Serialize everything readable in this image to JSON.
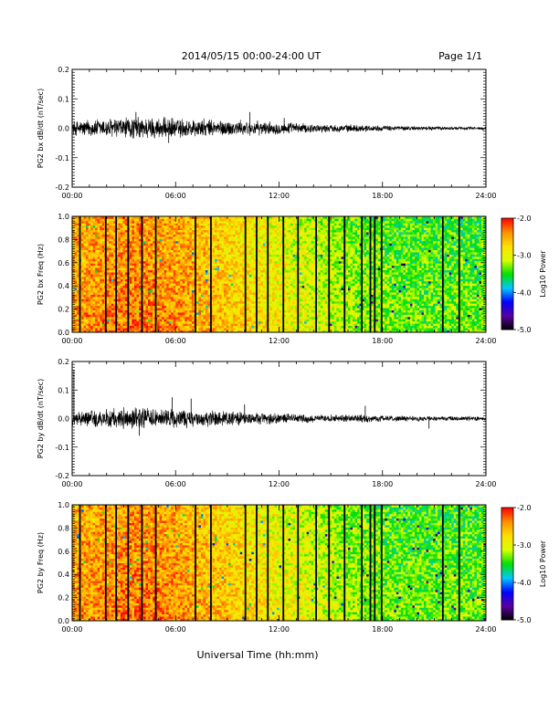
{
  "header": {
    "title": "2014/05/15  00:00-24:00 UT",
    "page": "Page 1/1"
  },
  "footer": {
    "xlabel": "Universal Time (hh:mm)"
  },
  "colorbar": {
    "label": "Log10 Power",
    "ticks": [
      "-2.0",
      "-3.0",
      "-4.0",
      "-5.0"
    ],
    "range": [
      -5.0,
      -2.0
    ],
    "colors": [
      "#000000",
      "#5a00a0",
      "#0000ff",
      "#00c8ff",
      "#00e000",
      "#d8ff00",
      "#ffe000",
      "#ff9000",
      "#ff0000"
    ]
  },
  "chart_data": [
    {
      "type": "line",
      "ylabel": "PG2 bx dB/dt (nT/sec)",
      "xlim": [
        0,
        24
      ],
      "ylim": [
        -0.2,
        0.2
      ],
      "x_tick_labels": [
        "00:00",
        "06:00",
        "12:00",
        "18:00",
        "24:00"
      ],
      "y_tick_labels": [
        "-0.2",
        "-0.1",
        "0.0",
        "0.1",
        "0.2"
      ],
      "amplitude_envelope": {
        "hours": [
          0,
          1,
          2,
          3,
          4,
          5,
          6,
          7,
          8,
          9,
          10,
          11,
          12,
          13,
          14,
          15,
          16,
          17,
          18,
          19,
          20,
          21,
          22,
          23,
          24
        ],
        "amplitude": [
          0.022,
          0.026,
          0.03,
          0.032,
          0.034,
          0.032,
          0.03,
          0.028,
          0.026,
          0.024,
          0.022,
          0.02,
          0.018,
          0.016,
          0.013,
          0.011,
          0.011,
          0.01,
          0.008,
          0.007,
          0.006,
          0.006,
          0.005,
          0.005,
          0.005
        ]
      },
      "spikes": [
        {
          "hour": 3.7,
          "value": 0.055
        },
        {
          "hour": 5.6,
          "value": -0.05
        },
        {
          "hour": 10.3,
          "value": 0.055
        },
        {
          "hour": 12.3,
          "value": 0.035
        }
      ]
    },
    {
      "type": "heatmap",
      "ylabel": "PG2 bx Freq (Hz)",
      "xlim": [
        0,
        24
      ],
      "ylim": [
        0.0,
        1.0
      ],
      "x_tick_labels": [
        "00:00",
        "06:00",
        "12:00",
        "18:00",
        "24:00"
      ],
      "y_tick_labels": [
        "0.0",
        "0.2",
        "0.4",
        "0.6",
        "0.8",
        "1.0"
      ],
      "zlim": [
        -5.0,
        -2.0
      ],
      "mean_log_power": {
        "hours": [
          0,
          2,
          4,
          6,
          8,
          10,
          12,
          14,
          16,
          18,
          20,
          22,
          24
        ],
        "value": [
          -2.45,
          -2.35,
          -2.3,
          -2.4,
          -2.55,
          -2.7,
          -2.85,
          -3.0,
          -3.15,
          -3.25,
          -3.3,
          -3.3,
          -3.3
        ]
      },
      "gap_hours": [
        0.45,
        1.95,
        2.55,
        3.25,
        4.05,
        4.85,
        7.15,
        8.05,
        10.05,
        10.7,
        11.35,
        12.25,
        13.1,
        14.15,
        14.9,
        15.8,
        16.8,
        17.3,
        17.55,
        17.95,
        21.5,
        22.45
      ]
    },
    {
      "type": "line",
      "ylabel": "PG2 by dB/dt (nT/sec)",
      "xlim": [
        0,
        24
      ],
      "ylim": [
        -0.2,
        0.2
      ],
      "x_tick_labels": [
        "00:00",
        "06:00",
        "12:00",
        "18:00",
        "24:00"
      ],
      "y_tick_labels": [
        "-0.2",
        "-0.1",
        "0.0",
        "0.1",
        "0.2"
      ],
      "amplitude_envelope": {
        "hours": [
          0,
          1,
          2,
          3,
          4,
          5,
          6,
          7,
          8,
          9,
          10,
          11,
          12,
          13,
          14,
          15,
          16,
          17,
          18,
          19,
          20,
          21,
          22,
          23,
          24
        ],
        "amplitude": [
          0.02,
          0.024,
          0.028,
          0.032,
          0.035,
          0.033,
          0.03,
          0.027,
          0.024,
          0.022,
          0.02,
          0.018,
          0.016,
          0.014,
          0.012,
          0.011,
          0.012,
          0.012,
          0.009,
          0.008,
          0.008,
          0.007,
          0.007,
          0.007,
          0.007
        ]
      },
      "spikes": [
        {
          "hour": 0.1,
          "value": 0.17
        },
        {
          "hour": 3.9,
          "value": -0.06
        },
        {
          "hour": 5.8,
          "value": 0.075
        },
        {
          "hour": 6.9,
          "value": 0.07
        },
        {
          "hour": 10.0,
          "value": 0.05
        },
        {
          "hour": 17.0,
          "value": 0.045
        },
        {
          "hour": 20.7,
          "value": -0.035
        }
      ]
    },
    {
      "type": "heatmap",
      "ylabel": "PG2 by Freq (Hz)",
      "xlim": [
        0,
        24
      ],
      "ylim": [
        0.0,
        1.0
      ],
      "x_tick_labels": [
        "00:00",
        "06:00",
        "12:00",
        "18:00",
        "24:00"
      ],
      "y_tick_labels": [
        "0.0",
        "0.2",
        "0.4",
        "0.6",
        "0.8",
        "1.0"
      ],
      "zlim": [
        -5.0,
        -2.0
      ],
      "mean_log_power": {
        "hours": [
          0,
          2,
          4,
          6,
          8,
          10,
          12,
          14,
          16,
          18,
          20,
          22,
          24
        ],
        "value": [
          -2.45,
          -2.35,
          -2.3,
          -2.4,
          -2.55,
          -2.7,
          -2.85,
          -3.0,
          -3.15,
          -3.25,
          -3.3,
          -3.3,
          -3.3
        ]
      },
      "gap_hours": [
        0.45,
        1.95,
        2.55,
        3.25,
        4.05,
        4.85,
        7.15,
        8.05,
        10.05,
        10.7,
        11.35,
        12.25,
        13.1,
        14.15,
        14.9,
        15.8,
        16.8,
        17.3,
        17.55,
        17.95,
        21.5,
        22.45
      ]
    }
  ]
}
